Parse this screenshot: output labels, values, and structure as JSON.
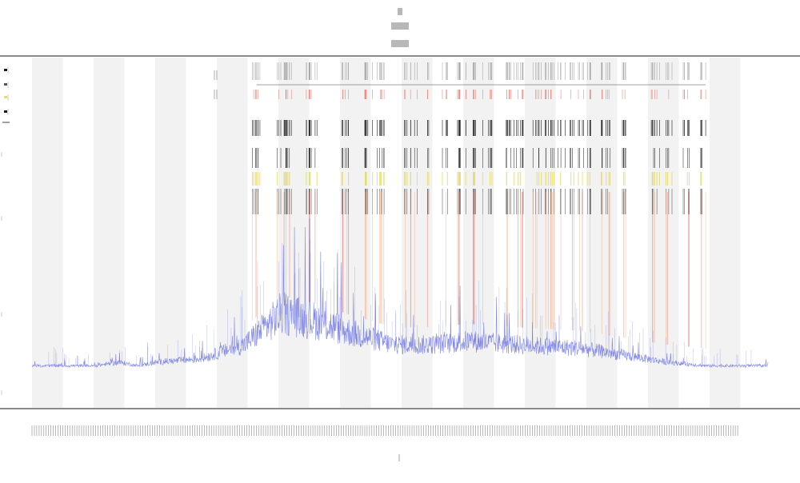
{
  "chart_data": {
    "type": "line",
    "title": "",
    "xlabel": "",
    "ylabel": "",
    "x_range": [
      0,
      118
    ],
    "y_range": [
      0,
      1
    ],
    "grid": false,
    "background_bands": true,
    "legend_placement": "top-left",
    "colors": {
      "band": "#f2f2f2",
      "baseline_series": "#5b63e0",
      "orange_events": "#f0a070",
      "red_events": "#e35a4a",
      "yellow_events": "#e6dc6c",
      "black_events": "#1a1a1a",
      "grey_ticks": "#999999",
      "axis": "#444444"
    },
    "series": [
      {
        "kind": "baseline",
        "profile": [
          [
            0,
            0.12
          ],
          [
            10,
            0.12
          ],
          [
            14,
            0.13
          ],
          [
            17,
            0.12
          ],
          [
            20,
            0.13
          ],
          [
            27,
            0.14
          ],
          [
            34,
            0.18
          ],
          [
            36,
            0.21
          ],
          [
            40,
            0.27
          ],
          [
            45,
            0.25
          ],
          [
            52,
            0.21
          ],
          [
            58,
            0.18
          ],
          [
            64,
            0.18
          ],
          [
            70,
            0.19
          ],
          [
            78,
            0.18
          ],
          [
            88,
            0.17
          ],
          [
            95,
            0.15
          ],
          [
            102,
            0.13
          ],
          [
            108,
            0.12
          ],
          [
            118,
            0.12
          ]
        ]
      }
    ],
    "event_clusters": [
      36,
      40,
      41,
      44,
      45,
      50,
      54,
      56,
      60,
      61,
      64,
      66,
      68,
      70,
      71,
      73,
      76,
      78,
      81,
      83,
      85,
      87,
      89,
      92,
      95,
      100,
      102,
      105,
      108
    ]
  }
}
